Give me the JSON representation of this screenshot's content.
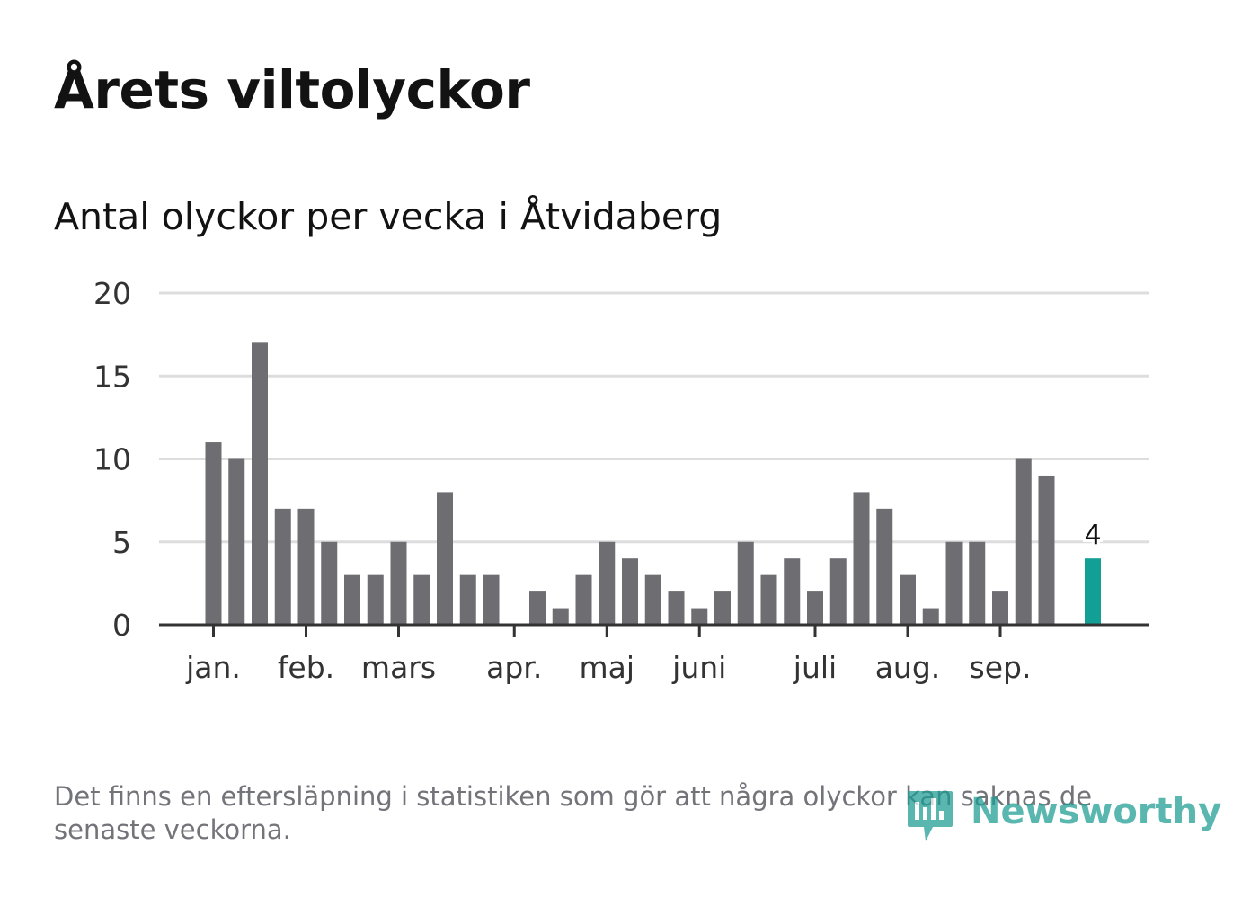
{
  "header": {
    "title": "Årets viltolyckor",
    "subtitle": "Antal olyckor per vecka i Åtvidaberg"
  },
  "footer": {
    "note": "Det finns en eftersläpning i statistiken som gör att några olyckor kan saknas de senaste veckorna.",
    "brand": "Newsworthy"
  },
  "colors": {
    "bar": "#6e6d72",
    "highlight": "#12a096",
    "grid": "#dddddd",
    "axis": "#333333"
  },
  "chart_data": {
    "type": "bar",
    "title": "Antal olyckor per vecka i Åtvidaberg",
    "xlabel": "",
    "ylabel": "",
    "ylim": [
      0,
      20
    ],
    "yticks": [
      0,
      5,
      10,
      15,
      20
    ],
    "grid": true,
    "weeks": [
      1,
      2,
      3,
      4,
      5,
      6,
      7,
      8,
      9,
      10,
      11,
      12,
      13,
      14,
      15,
      16,
      17,
      18,
      19,
      20,
      21,
      22,
      23,
      24,
      25,
      26,
      27,
      28,
      29,
      30,
      31,
      32,
      33,
      34,
      35,
      36,
      37,
      38,
      39
    ],
    "values": [
      11,
      10,
      17,
      7,
      7,
      5,
      3,
      3,
      5,
      3,
      8,
      3,
      3,
      0,
      2,
      1,
      3,
      5,
      4,
      3,
      2,
      1,
      2,
      5,
      3,
      4,
      2,
      4,
      8,
      7,
      3,
      1,
      5,
      5,
      2,
      10,
      9,
      null,
      4
    ],
    "highlight_index": 38,
    "highlight_label": "4",
    "month_ticks": [
      {
        "label": "jan.",
        "week": 1
      },
      {
        "label": "feb.",
        "week": 5
      },
      {
        "label": "mars",
        "week": 9
      },
      {
        "label": "apr.",
        "week": 14
      },
      {
        "label": "maj",
        "week": 18
      },
      {
        "label": "juni",
        "week": 22
      },
      {
        "label": "juli",
        "week": 27
      },
      {
        "label": "aug.",
        "week": 31
      },
      {
        "label": "sep.",
        "week": 35
      }
    ]
  }
}
